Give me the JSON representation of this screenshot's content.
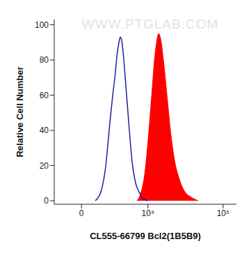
{
  "chart_data": {
    "type": "histogram",
    "x_label": "CL555-66799 Bcl2(1B5B9)",
    "y_label": "Relative Cell Number",
    "annotations": [
      "WWW.PTGLAB.COM"
    ],
    "log": "x",
    "xlim": [
      -2500,
      150000
    ],
    "xticks": [
      0,
      {
        "value": 10000,
        "label": "10⁴"
      },
      {
        "value": 100000,
        "label": "10⁵"
      }
    ],
    "ylim": [
      -2,
      103
    ],
    "yticks": [
      0,
      20,
      40,
      60,
      80,
      100
    ],
    "series": [
      {
        "type": "area",
        "color": "#ff0000",
        "x": [
          7060,
          8080,
          9025,
          10085,
          11260,
          12280,
          13100,
          13960,
          14870,
          16190,
          18060,
          20090,
          22360,
          26490,
          31330,
          37950,
          46970
        ],
        "values": [
          0,
          5,
          15,
          35,
          60,
          80,
          90,
          95,
          92,
          80,
          60,
          40,
          25,
          12,
          5,
          2,
          0
        ]
      },
      {
        "type": "line",
        "color": "#1f1fa0",
        "x": [
          1175,
          1690,
          2185,
          2645,
          2970,
          3235,
          3500,
          3790,
          3990,
          4195,
          4520,
          4980,
          5475,
          6015,
          6750,
          7550,
          8640,
          9880
        ],
        "values": [
          0,
          5,
          20,
          45,
          60,
          70,
          82,
          90,
          93,
          91,
          80,
          60,
          40,
          22,
          10,
          5,
          1,
          0
        ]
      }
    ]
  }
}
